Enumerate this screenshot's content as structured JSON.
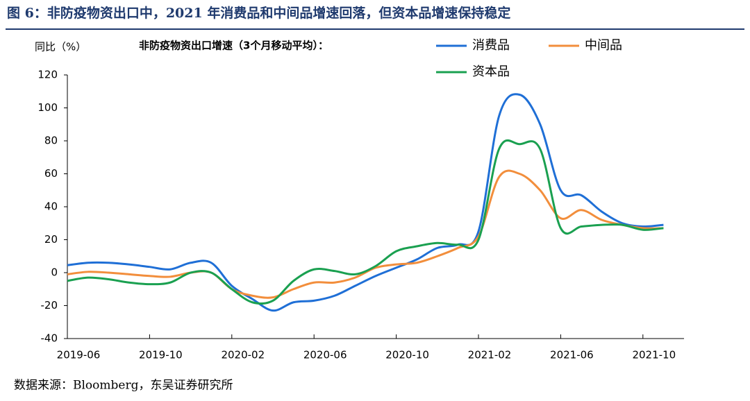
{
  "title": "图 6：非防疫物资出口中，2021 年消费品和中间品增速回落，但资本品增速保持稳定",
  "source": "数据来源：Bloomberg，东吴证券研究所",
  "chart_data": {
    "type": "line",
    "y_label": "同比（%）",
    "legend_title": "非防疫物资出口增速（3个月移动平均）：",
    "categories": [
      "2019-06",
      null,
      null,
      null,
      "2019-10",
      null,
      null,
      null,
      "2020-02",
      null,
      null,
      null,
      "2020-06",
      null,
      null,
      null,
      "2020-10",
      null,
      null,
      null,
      "2021-02",
      null,
      null,
      null,
      "2021-06",
      null,
      null,
      null,
      "2021-10",
      null
    ],
    "series": [
      {
        "name": "消费品",
        "color": "#1f6fd6",
        "values": [
          4.5,
          6,
          6,
          5,
          3.5,
          2,
          6,
          6,
          -8,
          -16,
          -23,
          -18,
          -17,
          -14,
          -8,
          -2,
          3,
          8,
          15,
          17,
          25,
          95,
          108,
          90,
          50,
          47,
          37,
          30,
          28,
          29
        ]
      },
      {
        "name": "中间品",
        "color": "#f28e3c",
        "values": [
          -1,
          0.5,
          0,
          -1,
          -2,
          -2.5,
          0,
          0,
          -10,
          -14,
          -15,
          -10,
          -6,
          -6,
          -3,
          3,
          5,
          6,
          10,
          15,
          22,
          58,
          60,
          50,
          33,
          38,
          32,
          29,
          27,
          27
        ]
      },
      {
        "name": "资本品",
        "color": "#1aa050",
        "values": [
          -5,
          -3,
          -4,
          -6,
          -7,
          -6,
          0,
          0,
          -10,
          -18,
          -17,
          -5,
          2,
          1,
          -1,
          4,
          13,
          16,
          18,
          17,
          20,
          75,
          78,
          75,
          27,
          28,
          29,
          29,
          26,
          27
        ]
      }
    ],
    "ylim": [
      -40,
      120
    ],
    "yticks": [
      -40,
      -20,
      0,
      20,
      40,
      60,
      80,
      100,
      120
    ]
  }
}
